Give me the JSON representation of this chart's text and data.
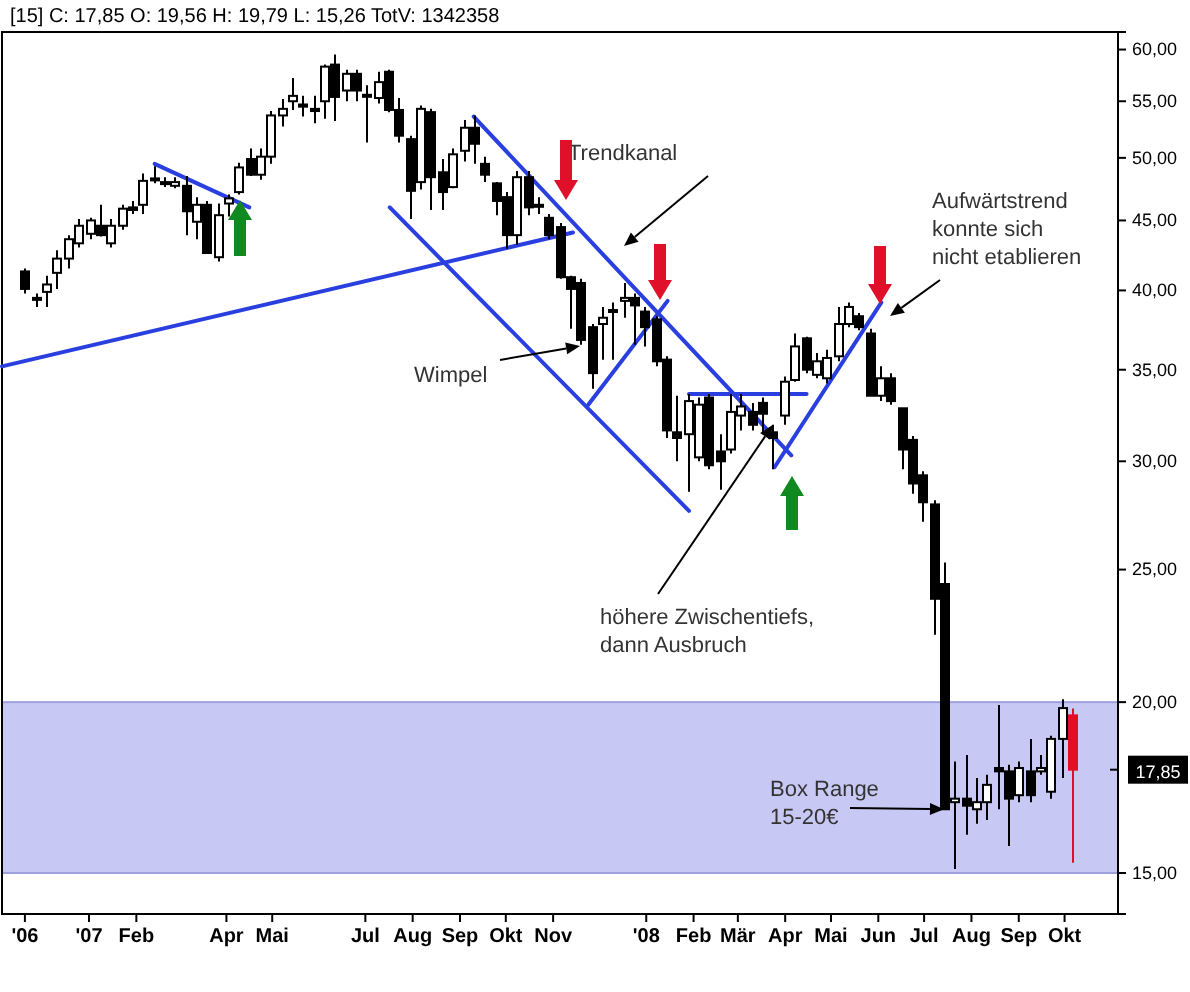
{
  "chart_data": {
    "type": "candlestick",
    "title": "[15] C: 17,85 O: 19,56 H: 19,79 L: 15,26 TotV: 1342358",
    "log": true,
    "xlim": [
      "2006-11-05",
      "2008-11-05"
    ],
    "xticks": [
      {
        "value": "2006-11-20",
        "label": "'06"
      },
      {
        "value": "2007-01-01",
        "label": "'07"
      },
      {
        "value": "2007-02-01",
        "label": "Feb"
      },
      {
        "value": "2007-04-01",
        "label": "Apr"
      },
      {
        "value": "2007-05-01",
        "label": "Mai"
      },
      {
        "value": "2007-07-01",
        "label": "Jul"
      },
      {
        "value": "2007-08-01",
        "label": "Aug"
      },
      {
        "value": "2007-09-01",
        "label": "Sep"
      },
      {
        "value": "2007-10-01",
        "label": "Okt"
      },
      {
        "value": "2007-11-01",
        "label": "Nov"
      },
      {
        "value": "2008-01-01",
        "label": "'08"
      },
      {
        "value": "2008-02-01",
        "label": "Feb"
      },
      {
        "value": "2008-03-01",
        "label": "Mär"
      },
      {
        "value": "2008-04-01",
        "label": "Apr"
      },
      {
        "value": "2008-05-01",
        "label": "Mai"
      },
      {
        "value": "2008-06-01",
        "label": "Jun"
      },
      {
        "value": "2008-07-01",
        "label": "Jul"
      },
      {
        "value": "2008-08-01",
        "label": "Aug"
      },
      {
        "value": "2008-09-01",
        "label": "Sep"
      },
      {
        "value": "2008-10-01",
        "label": "Okt"
      }
    ],
    "ylim": [
      14.0,
      61.8
    ],
    "yticks": [
      {
        "value": 15,
        "label": "15,00"
      },
      {
        "value": 20,
        "label": "20,00"
      },
      {
        "value": 25,
        "label": "25,00"
      },
      {
        "value": 30,
        "label": "30,00"
      },
      {
        "value": 35,
        "label": "35,00"
      },
      {
        "value": 40,
        "label": "40,00"
      },
      {
        "value": 45,
        "label": "45,00"
      },
      {
        "value": 50,
        "label": "50,00"
      },
      {
        "value": 55,
        "label": "55,00"
      },
      {
        "value": 60,
        "label": "60,00"
      }
    ],
    "x": [
      "2006-11-20",
      "2006-11-27",
      "2006-12-04",
      "2006-12-11",
      "2006-12-18",
      "2006-12-25",
      "2007-01-01",
      "2007-01-08",
      "2007-01-15",
      "2007-01-22",
      "2007-01-29",
      "2007-02-05",
      "2007-02-12",
      "2007-02-19",
      "2007-02-26",
      "2007-03-05",
      "2007-03-12",
      "2007-03-19",
      "2007-03-26",
      "2007-04-02",
      "2007-04-09",
      "2007-04-16",
      "2007-04-23",
      "2007-04-30",
      "2007-05-07",
      "2007-05-14",
      "2007-05-21",
      "2007-05-28",
      "2007-06-04",
      "2007-06-11",
      "2007-06-18",
      "2007-06-25",
      "2007-07-02",
      "2007-07-09",
      "2007-07-16",
      "2007-07-23",
      "2007-07-30",
      "2007-08-06",
      "2007-08-13",
      "2007-08-20",
      "2007-08-27",
      "2007-09-03",
      "2007-09-10",
      "2007-09-17",
      "2007-09-24",
      "2007-10-01",
      "2007-10-08",
      "2007-10-15",
      "2007-10-22",
      "2007-10-29",
      "2007-11-05",
      "2007-11-12",
      "2007-11-19",
      "2007-11-26",
      "2007-12-03",
      "2007-12-10",
      "2007-12-17",
      "2007-12-24",
      "2007-12-31",
      "2008-01-07",
      "2008-01-14",
      "2008-01-21",
      "2008-01-28",
      "2008-02-04",
      "2008-02-11",
      "2008-02-18",
      "2008-02-25",
      "2008-03-03",
      "2008-03-10",
      "2008-03-17",
      "2008-03-24",
      "2008-03-31",
      "2008-04-07",
      "2008-04-14",
      "2008-04-21",
      "2008-04-28",
      "2008-05-05",
      "2008-05-12",
      "2008-05-19",
      "2008-05-26",
      "2008-06-02",
      "2008-06-09",
      "2008-06-16",
      "2008-06-23",
      "2008-06-30",
      "2008-07-07",
      "2008-07-14",
      "2008-07-21",
      "2008-07-28",
      "2008-08-04",
      "2008-08-11",
      "2008-08-18",
      "2008-08-25",
      "2008-09-01",
      "2008-09-08",
      "2008-09-15",
      "2008-09-22",
      "2008-09-29",
      "2008-10-06"
    ],
    "ohlc": [
      [
        41.3,
        41.5,
        39.8,
        40.1
      ],
      [
        39.5,
        39.8,
        38.9,
        39.4
      ],
      [
        39.9,
        41.0,
        38.9,
        40.4
      ],
      [
        41.2,
        42.8,
        40.1,
        42.2
      ],
      [
        42.2,
        43.9,
        41.5,
        43.6
      ],
      [
        43.3,
        45.1,
        43.0,
        44.6
      ],
      [
        44.0,
        45.2,
        43.6,
        45.0
      ],
      [
        44.6,
        46.2,
        43.8,
        43.9
      ],
      [
        43.3,
        45.1,
        43.0,
        44.6
      ],
      [
        44.6,
        46.2,
        44.3,
        45.9
      ],
      [
        46.0,
        46.5,
        45.5,
        45.8
      ],
      [
        46.2,
        48.7,
        45.5,
        48.1
      ],
      [
        48.2,
        49.3,
        47.9,
        48.3
      ],
      [
        48.0,
        48.4,
        47.6,
        47.9
      ],
      [
        47.7,
        48.4,
        47.5,
        48.0
      ],
      [
        47.7,
        48.5,
        43.9,
        45.7
      ],
      [
        44.9,
        46.8,
        43.6,
        46.2
      ],
      [
        46.2,
        46.5,
        42.6,
        42.6
      ],
      [
        42.3,
        46.3,
        42.0,
        45.4
      ],
      [
        46.3,
        47.0,
        45.3,
        46.7
      ],
      [
        47.2,
        49.6,
        47.0,
        49.2
      ],
      [
        49.9,
        50.8,
        48.5,
        48.6
      ],
      [
        48.6,
        50.8,
        48.2,
        50.1
      ],
      [
        50.1,
        54.1,
        49.5,
        53.7
      ],
      [
        53.7,
        55.2,
        52.7,
        54.3
      ],
      [
        55.0,
        57.2,
        54.2,
        55.5
      ],
      [
        54.7,
        55.5,
        53.6,
        54.5
      ],
      [
        54.3,
        55.5,
        53.0,
        54.1
      ],
      [
        55.0,
        58.5,
        53.4,
        58.3
      ],
      [
        58.5,
        59.5,
        53.2,
        55.4
      ],
      [
        56.0,
        58.0,
        55.0,
        57.6
      ],
      [
        57.6,
        58.0,
        55.0,
        56.0
      ],
      [
        55.5,
        56.5,
        51.3,
        55.6
      ],
      [
        55.3,
        57.8,
        54.8,
        56.8
      ],
      [
        57.8,
        58.0,
        54.0,
        54.2
      ],
      [
        54.2,
        55.3,
        51.3,
        51.9
      ],
      [
        51.6,
        51.9,
        45.1,
        47.3
      ],
      [
        48.0,
        54.6,
        47.4,
        54.3
      ],
      [
        54.0,
        54.3,
        45.8,
        48.4
      ],
      [
        48.8,
        49.9,
        45.8,
        47.2
      ],
      [
        47.6,
        50.8,
        47.5,
        50.3
      ],
      [
        50.6,
        53.3,
        49.7,
        52.6
      ],
      [
        52.6,
        53.7,
        49.5,
        51.2
      ],
      [
        49.5,
        50.1,
        48.0,
        48.6
      ],
      [
        47.9,
        48.0,
        45.4,
        46.5
      ],
      [
        46.8,
        47.2,
        42.9,
        43.9
      ],
      [
        43.9,
        48.9,
        43.2,
        48.4
      ],
      [
        48.4,
        48.9,
        45.4,
        46.0
      ],
      [
        46.2,
        46.8,
        45.5,
        46.1
      ],
      [
        45.2,
        45.5,
        43.6,
        43.9
      ],
      [
        44.5,
        44.8,
        40.8,
        40.9
      ],
      [
        40.9,
        41.0,
        37.5,
        40.1
      ],
      [
        40.5,
        40.8,
        36.5,
        36.8
      ],
      [
        37.6,
        37.8,
        33.9,
        34.8
      ],
      [
        37.8,
        38.9,
        35.6,
        38.2
      ],
      [
        38.6,
        39.2,
        35.6,
        38.7
      ],
      [
        39.3,
        40.5,
        38.2,
        39.5
      ],
      [
        39.5,
        39.8,
        36.5,
        39.0
      ],
      [
        38.6,
        38.9,
        36.4,
        37.6
      ],
      [
        38.1,
        38.3,
        35.2,
        35.5
      ],
      [
        35.6,
        35.8,
        31.2,
        31.6
      ],
      [
        31.5,
        33.5,
        30.0,
        31.2
      ],
      [
        31.4,
        33.6,
        28.5,
        33.2
      ],
      [
        30.2,
        33.4,
        30.0,
        33.0
      ],
      [
        33.4,
        33.6,
        29.6,
        29.8
      ],
      [
        30.5,
        31.4,
        28.6,
        30.0
      ],
      [
        30.6,
        33.6,
        30.4,
        32.6
      ],
      [
        32.4,
        33.6,
        31.6,
        32.9
      ],
      [
        32.6,
        33.1,
        31.6,
        31.9
      ],
      [
        33.1,
        33.4,
        31.5,
        32.5
      ],
      [
        31.5,
        31.9,
        29.6,
        31.2
      ],
      [
        32.4,
        34.6,
        31.9,
        34.3
      ],
      [
        34.4,
        37.2,
        34.3,
        36.4
      ],
      [
        36.9,
        37.0,
        34.8,
        35.0
      ],
      [
        34.7,
        36.0,
        34.5,
        35.5
      ],
      [
        34.5,
        36.2,
        34.2,
        35.7
      ],
      [
        35.8,
        38.9,
        35.5,
        37.8
      ],
      [
        37.8,
        39.2,
        37.6,
        38.9
      ],
      [
        38.3,
        38.5,
        37.4,
        37.6
      ],
      [
        37.2,
        37.5,
        33.5,
        33.5
      ],
      [
        33.5,
        35.2,
        33.2,
        34.5
      ],
      [
        34.5,
        34.8,
        33.0,
        33.2
      ],
      [
        32.8,
        32.8,
        29.6,
        30.6
      ],
      [
        31.1,
        31.3,
        28.4,
        28.9
      ],
      [
        29.3,
        29.5,
        27.1,
        28.0
      ],
      [
        27.9,
        28.1,
        22.4,
        23.8
      ],
      [
        24.4,
        25.3,
        16.7,
        16.7
      ],
      [
        16.9,
        18.1,
        15.1,
        17.0
      ],
      [
        17.0,
        18.3,
        16.0,
        16.8
      ],
      [
        16.7,
        17.6,
        16.3,
        16.9
      ],
      [
        16.9,
        17.7,
        16.4,
        17.4
      ],
      [
        17.9,
        19.9,
        16.7,
        17.8
      ],
      [
        17.8,
        18.0,
        15.7,
        17.0
      ],
      [
        17.1,
        18.1,
        16.9,
        17.9
      ],
      [
        17.8,
        18.8,
        16.9,
        17.1
      ],
      [
        17.8,
        18.3,
        17.7,
        17.9
      ],
      [
        17.2,
        18.9,
        17.0,
        18.8
      ],
      [
        18.8,
        20.1,
        17.6,
        19.8
      ],
      [
        19.56,
        19.79,
        15.26,
        17.85
      ]
    ],
    "colors": [
      "#000000",
      "#000000",
      "#000000",
      "#000000",
      "#000000",
      "#000000",
      "#000000",
      "#000000",
      "#000000",
      "#000000",
      "#000000",
      "#000000",
      "#000000",
      "#000000",
      "#000000",
      "#000000",
      "#000000",
      "#000000",
      "#000000",
      "#000000",
      "#000000",
      "#000000",
      "#000000",
      "#000000",
      "#000000",
      "#000000",
      "#000000",
      "#000000",
      "#000000",
      "#000000",
      "#000000",
      "#000000",
      "#000000",
      "#000000",
      "#000000",
      "#000000",
      "#000000",
      "#000000",
      "#000000",
      "#000000",
      "#000000",
      "#000000",
      "#000000",
      "#000000",
      "#000000",
      "#000000",
      "#000000",
      "#000000",
      "#000000",
      "#000000",
      "#000000",
      "#000000",
      "#000000",
      "#000000",
      "#000000",
      "#000000",
      "#000000",
      "#000000",
      "#000000",
      "#000000",
      "#000000",
      "#000000",
      "#000000",
      "#000000",
      "#000000",
      "#000000",
      "#000000",
      "#000000",
      "#000000",
      "#000000",
      "#000000",
      "#000000",
      "#000000",
      "#000000",
      "#000000",
      "#000000",
      "#000000",
      "#000000",
      "#000000",
      "#000000",
      "#000000",
      "#000000",
      "#000000",
      "#000000",
      "#000000",
      "#000000",
      "#000000",
      "#000000",
      "#000000",
      "#000000",
      "#000000",
      "#000000",
      "#000000",
      "#000000",
      "#000000",
      "#000000",
      "#000000",
      "#000000",
      "#e0102a"
    ],
    "series": [
      {
        "type": "line",
        "color": "#2a3fe0",
        "x": [
          "2006-11-05",
          "2007-11-14"
        ],
        "values": [
          35.2,
          44.1
        ]
      },
      {
        "type": "line",
        "color": "#2a3fe0",
        "x": [
          "2007-02-13",
          "2007-04-16"
        ],
        "values": [
          49.5,
          46.0
        ]
      },
      {
        "type": "line",
        "color": "#2a3fe0",
        "x": [
          "2007-09-10",
          "2008-04-05"
        ],
        "values": [
          53.6,
          30.3
        ]
      },
      {
        "type": "line",
        "color": "#2a3fe0",
        "x": [
          "2007-07-17",
          "2008-01-29"
        ],
        "values": [
          46.0,
          27.6
        ]
      },
      {
        "type": "line",
        "color": "#2a3fe0",
        "x": [
          "2007-11-24",
          "2008-01-15"
        ],
        "values": [
          33.0,
          39.3
        ]
      },
      {
        "type": "line",
        "color": "#2a3fe0",
        "x": [
          "2008-01-29",
          "2008-04-15"
        ],
        "values": [
          33.6,
          33.6
        ]
      },
      {
        "type": "line",
        "color": "#2a3fe0",
        "x": [
          "2008-03-25",
          "2008-06-03"
        ],
        "values": [
          29.7,
          39.2
        ]
      }
    ],
    "bands": [
      {
        "axis": "y",
        "from": 15,
        "to": 20,
        "color": "#c8c8f4"
      }
    ],
    "ref_lines": [
      {
        "axis": "y",
        "value": 17.85,
        "label": "17,85"
      }
    ],
    "annotations": [
      "Trendkanal",
      "Wimpel",
      {
        "text": "höhere Zwischentiefs,\ndann Ausbruch",
        "x": "2008-03-24",
        "y": 31.9
      },
      "Aufwärtstrend\nkonnte sich\nnicht etablieren",
      {
        "text": "Box Range\n15-20€",
        "x": "2008-07-14",
        "y": 16.7
      }
    ]
  }
}
